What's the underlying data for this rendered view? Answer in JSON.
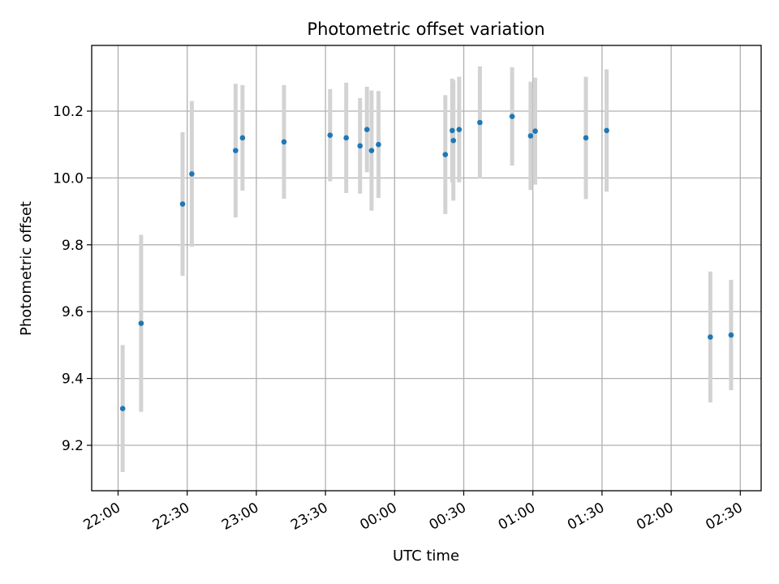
{
  "chart_data": {
    "type": "scatter",
    "title": "Photometric offset variation",
    "xlabel": "UTC time",
    "ylabel": "Photometric offset",
    "x_axis_kind": "time",
    "x_ticks": [
      "22:00",
      "22:30",
      "23:00",
      "23:30",
      "00:00",
      "00:30",
      "01:00",
      "01:30",
      "02:00",
      "02:30"
    ],
    "y_ticks": [
      "9.2",
      "9.4",
      "9.6",
      "9.8",
      "10.0",
      "10.2"
    ],
    "ylim": [
      9.065,
      10.385
    ],
    "grid": true,
    "point_color": "#1f77b4",
    "errorbar_color": "#d3d3d3",
    "points": [
      {
        "t": "22:02",
        "y": 9.31,
        "err": 0.19
      },
      {
        "t": "22:10",
        "y": 9.565,
        "err": 0.265
      },
      {
        "t": "22:28",
        "y": 9.922,
        "err": 0.215
      },
      {
        "t": "22:32",
        "y": 10.012,
        "err": 0.218
      },
      {
        "t": "22:51",
        "y": 10.082,
        "err": 0.2
      },
      {
        "t": "22:54",
        "y": 10.12,
        "err": 0.158
      },
      {
        "t": "23:12",
        "y": 10.108,
        "err": 0.17
      },
      {
        "t": "23:32",
        "y": 10.128,
        "err": 0.138
      },
      {
        "t": "23:39",
        "y": 10.12,
        "err": 0.165
      },
      {
        "t": "23:45",
        "y": 10.096,
        "err": 0.143
      },
      {
        "t": "23:48",
        "y": 10.145,
        "err": 0.128
      },
      {
        "t": "23:50",
        "y": 10.082,
        "err": 0.18
      },
      {
        "t": "23:53",
        "y": 10.1,
        "err": 0.16
      },
      {
        "t": "00:22",
        "y": 10.07,
        "err": 0.178
      },
      {
        "t": "00:25",
        "y": 10.142,
        "err": 0.155
      },
      {
        "t": "00:25:30",
        "y": 10.112,
        "err": 0.18
      },
      {
        "t": "00:28",
        "y": 10.145,
        "err": 0.158
      },
      {
        "t": "00:37",
        "y": 10.166,
        "err": 0.168
      },
      {
        "t": "00:51",
        "y": 10.184,
        "err": 0.147
      },
      {
        "t": "00:59",
        "y": 10.126,
        "err": 0.162
      },
      {
        "t": "01:01",
        "y": 10.14,
        "err": 0.16
      },
      {
        "t": "01:23",
        "y": 10.12,
        "err": 0.183
      },
      {
        "t": "01:32",
        "y": 10.142,
        "err": 0.183
      },
      {
        "t": "02:17",
        "y": 9.524,
        "err": 0.196
      },
      {
        "t": "02:26",
        "y": 9.53,
        "err": 0.165
      }
    ]
  }
}
